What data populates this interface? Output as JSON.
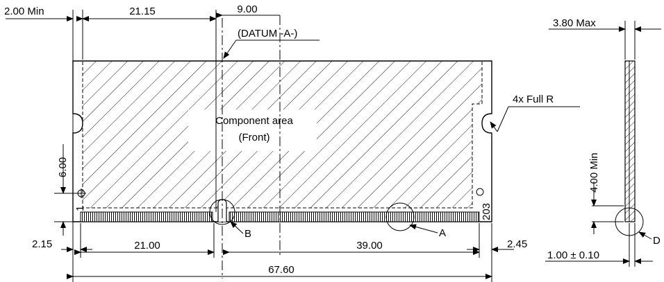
{
  "drawing": {
    "dimensions": {
      "left_offset": "2.00 Min",
      "pin1_to_datum": "21.15",
      "datum_to_centerline": "9.00",
      "datum_label": "(DATUM -A-)",
      "full_radius": "4x Full R",
      "hole_height": "6.00",
      "left_edge_bottom": "2.15",
      "bottom_left_span": "21.00",
      "bottom_right_span": "39.00",
      "right_edge_bottom": "2.45",
      "overall_width": "67.60",
      "max_thickness": "3.80 Max",
      "min_height": "4.00 Min",
      "pcb_thickness": "1.00 ± 0.10"
    },
    "component_area": {
      "line1": "Component area",
      "line2": "(Front)"
    },
    "pins": {
      "first": "1",
      "last": "203"
    },
    "callouts": {
      "a": "A",
      "b": "B",
      "d": "D"
    }
  }
}
